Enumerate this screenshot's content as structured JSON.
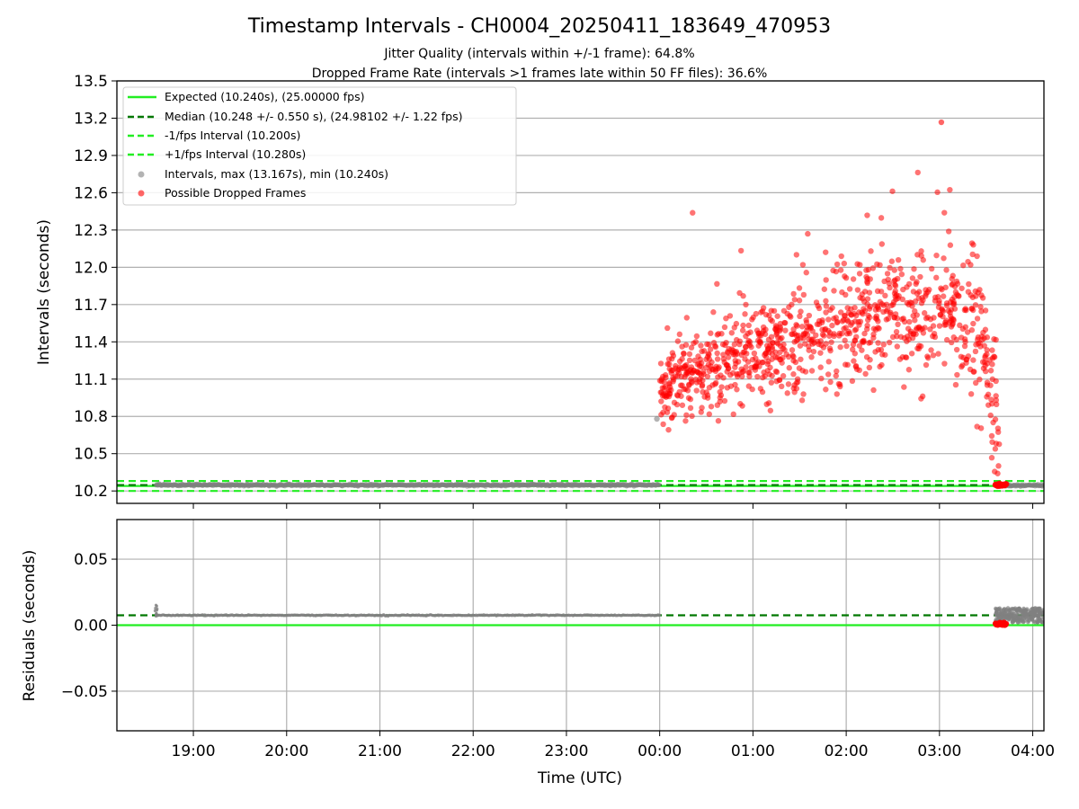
{
  "title": "Timestamp Intervals - CH0004_20250411_183649_470953",
  "subtitle_1": "Jitter Quality (intervals within +/-1 frame): 64.8%",
  "subtitle_2": "Dropped Frame Rate (intervals >1 frames late within 50 FF files): 36.6%",
  "colors": {
    "expected": "#22ee22",
    "median": "#007700",
    "interval_band": "#22ee22",
    "intervals": "#808080",
    "dropped": "#ff0000",
    "grid": "#b0b0b0"
  },
  "chart_data": [
    {
      "type": "scatter",
      "panel": "intervals",
      "ylabel": "Intervals (seconds)",
      "xlabel": "",
      "xlim_hours": [
        18.18,
        28.12
      ],
      "ylim": [
        10.1,
        13.5
      ],
      "grid": true,
      "legend_position": "top-left",
      "yticks": [
        "10.2",
        "10.5",
        "10.8",
        "11.1",
        "11.4",
        "11.7",
        "12.0",
        "12.3",
        "12.6",
        "12.9",
        "13.2",
        "13.5"
      ],
      "reference_lines": [
        {
          "name": "Expected (10.240s), (25.00000 fps)",
          "y": 10.24,
          "style": "solid",
          "color_key": "expected"
        },
        {
          "name": "Median (10.248 +/- 0.550 s), (24.98102 +/- 1.22 fps)",
          "y": 10.248,
          "style": "dashed",
          "color_key": "median"
        },
        {
          "name": "-1/fps Interval (10.200s)",
          "y": 10.2,
          "style": "dashed",
          "color_key": "interval_band"
        },
        {
          "name": "+1/fps Interval (10.280s)",
          "y": 10.28,
          "style": "dashed",
          "color_key": "interval_band"
        }
      ],
      "series": [
        {
          "name": "Intervals, max (13.167s), min (10.240s)",
          "kind": "steady",
          "segments": [
            {
              "x_start_hours": 18.6,
              "x_end_hours": 24.0,
              "y": 10.248
            },
            {
              "x_start_hours": 27.6,
              "x_end_hours": 28.12,
              "y": 10.245
            }
          ],
          "stray_points": [
            {
              "x_hours": 23.97,
              "y": 10.78
            }
          ]
        },
        {
          "name": "Possible Dropped Frames",
          "kind": "cloud",
          "x_range_hours": [
            24.0,
            27.64
          ],
          "count": 1000,
          "trend": [
            {
              "x_hours": 24.0,
              "y": 11.0
            },
            {
              "x_hours": 24.5,
              "y": 11.18
            },
            {
              "x_hours": 25.0,
              "y": 11.3
            },
            {
              "x_hours": 25.5,
              "y": 11.42
            },
            {
              "x_hours": 26.0,
              "y": 11.55
            },
            {
              "x_hours": 26.5,
              "y": 11.62
            },
            {
              "x_hours": 27.0,
              "y": 11.66
            },
            {
              "x_hours": 27.3,
              "y": 11.58
            },
            {
              "x_hours": 27.5,
              "y": 11.2
            },
            {
              "x_hours": 27.62,
              "y": 10.7
            }
          ],
          "spread": 0.17,
          "max_point": {
            "x_hours": 27.02,
            "y": 13.167
          },
          "cluster": {
            "x_start_hours": 27.6,
            "x_end_hours": 27.72,
            "y": 10.248
          }
        }
      ]
    },
    {
      "type": "scatter",
      "panel": "residuals",
      "ylabel": "Residuals (seconds)",
      "xlabel": "Time (UTC)",
      "xlim_hours": [
        18.18,
        28.12
      ],
      "ylim": [
        -0.08,
        0.08
      ],
      "grid": true,
      "yticks": [
        "0.05",
        "0.00",
        "−0.05"
      ],
      "ytick_values": [
        0.05,
        0.0,
        -0.05
      ],
      "xtick_labels": [
        "19:00",
        "20:00",
        "21:00",
        "22:00",
        "23:00",
        "00:00",
        "01:00",
        "02:00",
        "03:00",
        "04:00"
      ],
      "xtick_hours": [
        19,
        20,
        21,
        22,
        23,
        24,
        25,
        26,
        27,
        28
      ],
      "reference_lines": [
        {
          "y": 0.0,
          "style": "solid",
          "color_key": "expected"
        },
        {
          "y": 0.0075,
          "style": "dashed",
          "color_key": "median"
        }
      ],
      "series": [
        {
          "kind": "steady",
          "x_start_hours": 18.6,
          "x_end_hours": 24.0,
          "y": 0.0075
        },
        {
          "kind": "spike",
          "x_hours": 18.6,
          "y_range": [
            0.005,
            0.016
          ]
        },
        {
          "kind": "cluster",
          "x_start_hours": 27.6,
          "x_end_hours": 28.12,
          "y_range": [
            0.002,
            0.013
          ]
        },
        {
          "kind": "dropped",
          "x_start_hours": 27.6,
          "x_end_hours": 27.72,
          "y": 0.001
        }
      ]
    }
  ]
}
